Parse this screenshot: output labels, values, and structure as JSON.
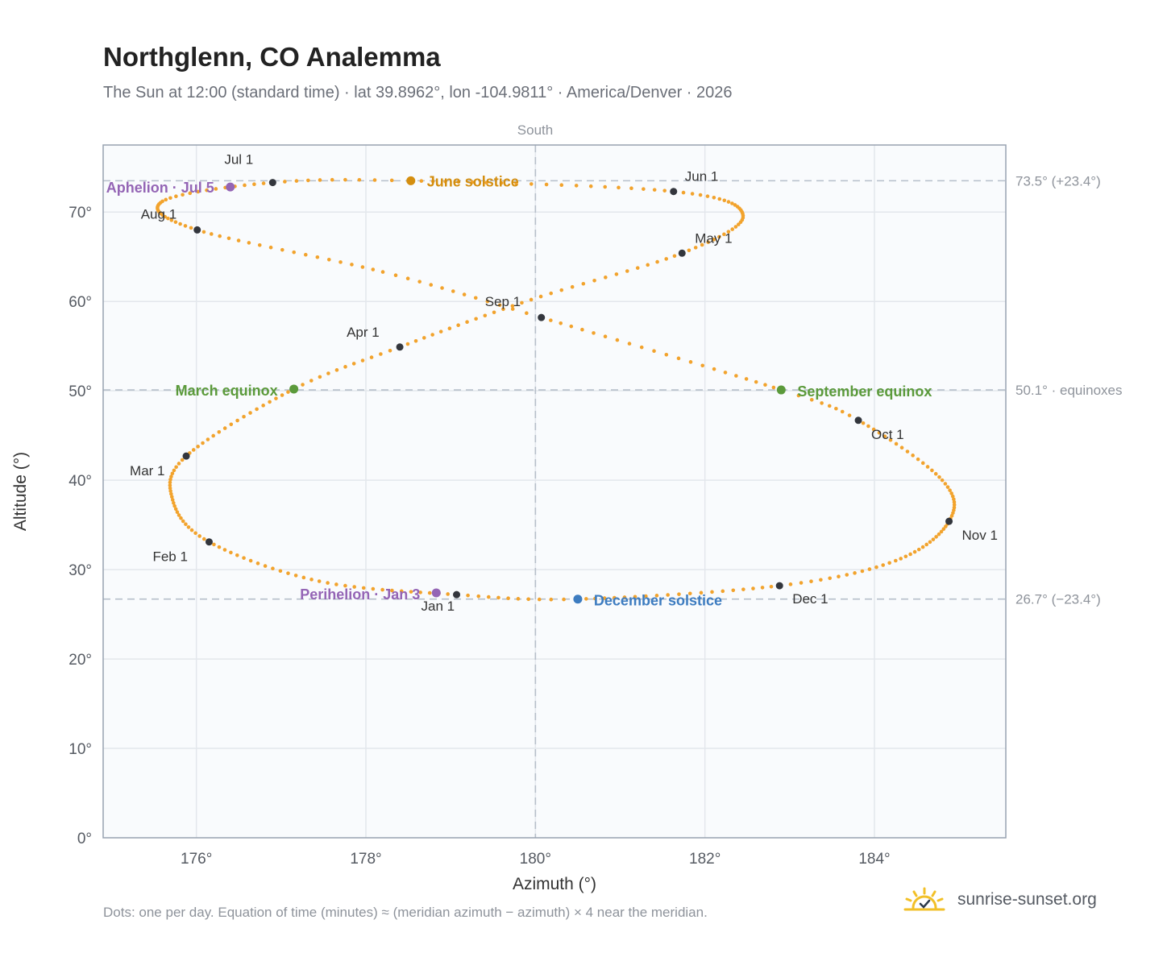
{
  "header": {
    "title": "Northglenn, CO Analemma",
    "subtitle": "The Sun at 12:00 (standard time) · lat 39.8962°, lon -104.9811° · America/Denver · 2026"
  },
  "footer": {
    "note": "Dots: one per day. Equation of time (minutes) ≈ (meridian azimuth − azimuth) × 4 near the meridian.",
    "brand": "sunrise-sunset.org"
  },
  "colors": {
    "curve": "#f2a32d",
    "marker": "#33363d",
    "solstice_june": "#d48e0f",
    "solstice_december": "#3d7cc0",
    "equinox": "#5b9a3b",
    "apsis": "#9465b5",
    "grid": "#e3e7ec",
    "frame": "#97a2b0",
    "plot_bg": "#f9fbfd"
  },
  "chart_data": {
    "type": "scatter",
    "xlabel": "Azimuth (°)",
    "ylabel": "Altitude (°)",
    "xlim": [
      174.9,
      185.55
    ],
    "ylim": [
      0,
      77.5
    ],
    "x_ticks": [
      176,
      178,
      180,
      182,
      184
    ],
    "x_tick_labels": [
      "176°",
      "178°",
      "180°",
      "182°",
      "184°"
    ],
    "y_ticks": [
      0,
      10,
      20,
      30,
      40,
      50,
      60,
      70
    ],
    "y_tick_labels": [
      "0°",
      "10°",
      "20°",
      "30°",
      "40°",
      "50°",
      "60°",
      "70°"
    ],
    "grid": true,
    "meridian": {
      "x": 180,
      "label": "South"
    },
    "reference_lines": [
      {
        "y": 73.5,
        "label": "73.5° (+23.4°)"
      },
      {
        "y": 50.1,
        "label": "50.1° · equinoxes"
      },
      {
        "y": 26.7,
        "label": "26.7° (−23.4°)"
      }
    ],
    "curve_anchors": [
      {
        "day": 0,
        "x": 179.07,
        "y": 27.2
      },
      {
        "day": 15,
        "x": 177.45,
        "y": 28.7
      },
      {
        "day": 31,
        "x": 176.15,
        "y": 33.1
      },
      {
        "day": 45,
        "x": 175.72,
        "y": 37.8
      },
      {
        "day": 59,
        "x": 175.88,
        "y": 42.7
      },
      {
        "day": 78,
        "x": 177.15,
        "y": 50.2
      },
      {
        "day": 90,
        "x": 178.4,
        "y": 54.9
      },
      {
        "day": 105,
        "x": 179.95,
        "y": 60.2
      },
      {
        "day": 120,
        "x": 181.73,
        "y": 65.4
      },
      {
        "day": 135,
        "x": 182.45,
        "y": 69.6
      },
      {
        "day": 151,
        "x": 181.63,
        "y": 72.3
      },
      {
        "day": 171,
        "x": 178.53,
        "y": 73.5
      },
      {
        "day": 181,
        "x": 176.9,
        "y": 73.3
      },
      {
        "day": 195,
        "x": 175.6,
        "y": 71.2
      },
      {
        "day": 212,
        "x": 176.01,
        "y": 68.0
      },
      {
        "day": 230,
        "x": 178.2,
        "y": 63.3
      },
      {
        "day": 243,
        "x": 180.07,
        "y": 58.2
      },
      {
        "day": 265,
        "x": 182.9,
        "y": 50.1
      },
      {
        "day": 273,
        "x": 183.81,
        "y": 46.7
      },
      {
        "day": 290,
        "x": 184.8,
        "y": 40.0
      },
      {
        "day": 304,
        "x": 184.88,
        "y": 35.4
      },
      {
        "day": 320,
        "x": 184.25,
        "y": 31.0
      },
      {
        "day": 334,
        "x": 182.88,
        "y": 28.2
      },
      {
        "day": 354,
        "x": 180.5,
        "y": 26.7
      },
      {
        "day": 365,
        "x": 179.07,
        "y": 27.2
      }
    ],
    "month_markers": [
      {
        "label": "Jan 1",
        "x": 179.07,
        "y": 27.2
      },
      {
        "label": "Feb 1",
        "x": 176.15,
        "y": 33.1
      },
      {
        "label": "Mar 1",
        "x": 175.88,
        "y": 42.7
      },
      {
        "label": "Apr 1",
        "x": 178.4,
        "y": 54.9
      },
      {
        "label": "May 1",
        "x": 181.73,
        "y": 65.4
      },
      {
        "label": "Jun 1",
        "x": 181.63,
        "y": 72.3
      },
      {
        "label": "Jul 1",
        "x": 176.9,
        "y": 73.3
      },
      {
        "label": "Aug 1",
        "x": 176.01,
        "y": 68.0
      },
      {
        "label": "Sep 1",
        "x": 180.07,
        "y": 58.2
      },
      {
        "label": "Oct 1",
        "x": 183.81,
        "y": 46.7
      },
      {
        "label": "Nov 1",
        "x": 184.88,
        "y": 35.4
      },
      {
        "label": "Dec 1",
        "x": 182.88,
        "y": 28.2
      }
    ],
    "events": [
      {
        "label": "June solstice",
        "x": 178.53,
        "y": 73.5,
        "color": "#d48e0f"
      },
      {
        "label": "December solstice",
        "x": 180.5,
        "y": 26.7,
        "color": "#3d7cc0"
      },
      {
        "label": "March equinox",
        "x": 177.15,
        "y": 50.2,
        "color": "#5b9a3b"
      },
      {
        "label": "September equinox",
        "x": 182.9,
        "y": 50.1,
        "color": "#5b9a3b"
      },
      {
        "label": "Aphelion · Jul 5",
        "x": 176.4,
        "y": 72.8,
        "color": "#9465b5"
      },
      {
        "label": "Perihelion · Jan 3",
        "x": 178.83,
        "y": 27.4,
        "color": "#9465b5"
      }
    ]
  }
}
